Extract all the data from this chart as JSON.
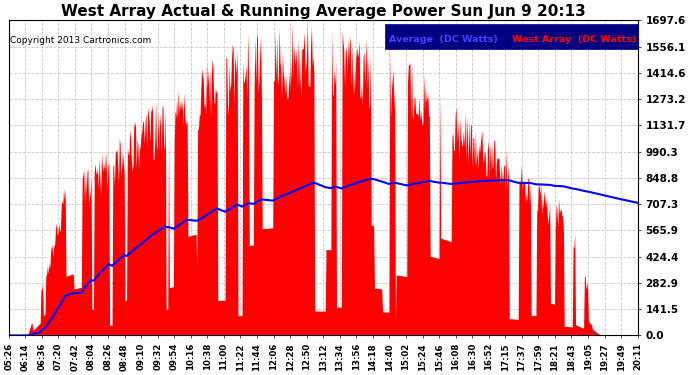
{
  "title": "West Array Actual & Running Average Power Sun Jun 9 20:13",
  "copyright": "Copyright 2013 Cartronics.com",
  "legend_label_avg": "Average  (DC Watts)",
  "legend_label_west": "West Array  (DC Watts)",
  "yticks": [
    0.0,
    141.5,
    282.9,
    424.4,
    565.9,
    707.3,
    848.8,
    990.3,
    1131.7,
    1273.2,
    1414.6,
    1556.1,
    1697.6
  ],
  "xtick_labels": [
    "05:26",
    "06:14",
    "06:36",
    "07:20",
    "07:42",
    "08:04",
    "08:26",
    "08:48",
    "09:10",
    "09:32",
    "09:54",
    "10:16",
    "10:38",
    "11:00",
    "11:22",
    "11:44",
    "12:06",
    "12:28",
    "12:50",
    "13:12",
    "13:34",
    "13:56",
    "14:18",
    "14:40",
    "15:02",
    "15:24",
    "15:46",
    "16:08",
    "16:30",
    "16:52",
    "17:15",
    "17:37",
    "17:59",
    "18:21",
    "18:43",
    "19:05",
    "19:27",
    "19:49",
    "20:11"
  ],
  "bar_color": "#FF0000",
  "line_color": "#0000FF",
  "background_color": "#FFFFFF",
  "grid_color": "#C8C8C8",
  "title_fontsize": 11,
  "legend_bg": "#000080"
}
